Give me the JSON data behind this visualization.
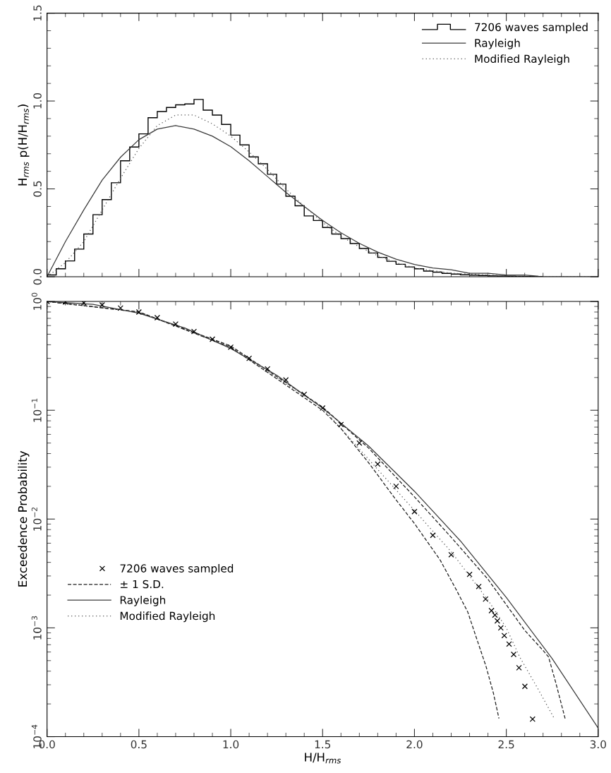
{
  "chart_data": [
    {
      "type": "histogram",
      "ylabel": "H$_{rms}$ p(H/H$_{rms}$)",
      "xlim": [
        0,
        3
      ],
      "xticks": [
        0,
        0.5,
        1,
        1.5,
        2,
        2.5,
        3
      ],
      "ylim": [
        0,
        1.5
      ],
      "yticks": [
        {
          "value": 0,
          "label": "0.0"
        },
        0.5,
        {
          "value": 1,
          "label": "1.0"
        },
        1.5
      ],
      "tick_labels": "y",
      "legend": "top right",
      "grid": false,
      "series": [
        {
          "name": "7206 waves sampled",
          "color": "#000000",
          "bins": [
            0,
            0.05,
            0.1,
            0.15,
            0.2,
            0.25,
            0.3,
            0.35,
            0.4,
            0.45,
            0.5,
            0.55,
            0.6,
            0.65,
            0.7,
            0.75,
            0.8,
            0.85,
            0.9,
            0.95,
            1.0,
            1.05,
            1.1,
            1.15,
            1.2,
            1.25,
            1.3,
            1.35,
            1.4,
            1.45,
            1.5,
            1.55,
            1.6,
            1.65,
            1.7,
            1.75,
            1.8,
            1.85,
            1.9,
            1.95,
            2.0,
            2.05,
            2.1,
            2.15,
            2.2,
            2.25,
            2.3,
            2.35,
            2.4,
            2.45,
            2.5,
            2.55,
            2.6,
            2.65,
            2.7
          ],
          "values": [
            0.01,
            0.045,
            0.09,
            0.157,
            0.243,
            0.353,
            0.439,
            0.535,
            0.66,
            0.738,
            0.813,
            0.905,
            0.94,
            0.963,
            0.978,
            0.983,
            1.009,
            0.948,
            0.92,
            0.867,
            0.806,
            0.75,
            0.682,
            0.643,
            0.583,
            0.527,
            0.458,
            0.404,
            0.346,
            0.32,
            0.28,
            0.243,
            0.217,
            0.189,
            0.161,
            0.135,
            0.11,
            0.088,
            0.071,
            0.056,
            0.045,
            0.032,
            0.026,
            0.019,
            0.015,
            0.011,
            0.009,
            0.007,
            0.005,
            0.004,
            0.003,
            0.002,
            0.001,
            0.001
          ]
        },
        {
          "name": "Rayleigh",
          "type": "line",
          "line_style": "solid",
          "color": "#3a3a3a",
          "x": [
            0,
            0.1,
            0.2,
            0.3,
            0.4,
            0.5,
            0.6,
            0.7,
            0.8,
            0.9,
            1.0,
            1.1,
            1.2,
            1.3,
            1.4,
            1.5,
            1.6,
            1.7,
            1.8,
            1.9,
            2.0,
            2.1,
            2.2,
            2.3,
            2.4,
            2.5,
            2.6,
            2.7,
            2.8,
            2.9,
            3.0
          ],
          "values": [
            0,
            0.2,
            0.38,
            0.55,
            0.68,
            0.78,
            0.84,
            0.86,
            0.84,
            0.8,
            0.74,
            0.66,
            0.57,
            0.48,
            0.4,
            0.32,
            0.25,
            0.19,
            0.14,
            0.1,
            0.07,
            0.05,
            0.04,
            0.02,
            0.02,
            0.01,
            0.01,
            0.0,
            0.0,
            0.0,
            0.0
          ]
        },
        {
          "name": "Modified Rayleigh",
          "type": "line",
          "line_style": "dotted",
          "color": "#555555",
          "x": [
            0,
            0.1,
            0.2,
            0.3,
            0.4,
            0.5,
            0.6,
            0.7,
            0.8,
            0.9,
            1.0,
            1.1,
            1.2,
            1.3,
            1.4,
            1.5,
            1.6,
            1.7,
            1.8,
            1.9,
            2.0,
            2.2,
            2.4,
            2.6,
            3.0
          ],
          "values": [
            0,
            0.08,
            0.2,
            0.38,
            0.56,
            0.73,
            0.86,
            0.92,
            0.92,
            0.87,
            0.8,
            0.71,
            0.61,
            0.5,
            0.4,
            0.31,
            0.23,
            0.17,
            0.12,
            0.08,
            0.05,
            0.02,
            0.01,
            0.0,
            0.0
          ]
        }
      ]
    },
    {
      "type": "scatter",
      "xlabel": "H/H$_{rms}$",
      "ylabel": "Exceedence Probability",
      "log": "y",
      "xlim": [
        0,
        3
      ],
      "xticks": [
        {
          "value": 0,
          "label": "0.0"
        },
        0.5,
        {
          "value": 1,
          "label": "1.0"
        },
        1.5,
        {
          "value": 2,
          "label": "2.0"
        },
        2.5,
        {
          "value": 3,
          "label": "3.0"
        }
      ],
      "ylim": [
        0.0001,
        1
      ],
      "yticks": [
        {
          "value": 0.0001,
          "label": "10$^{−4}$"
        },
        {
          "value": 0.001,
          "label": "10$^{−3}$"
        },
        {
          "value": 0.01,
          "label": "10$^{−2}$"
        },
        {
          "value": 0.1,
          "label": "10$^{−1}$"
        },
        {
          "value": 1,
          "label": "10$^{0}$"
        }
      ],
      "legend": "center left",
      "grid": false,
      "series": [
        {
          "name": "7206 waves sampled",
          "marker": "cross",
          "color": "#000000",
          "x": [
            0,
            0.1,
            0.2,
            0.3,
            0.4,
            0.5,
            0.6,
            0.7,
            0.8,
            0.9,
            1.0,
            1.1,
            1.2,
            1.3,
            1.4,
            1.5,
            1.6,
            1.7,
            1.8,
            1.9,
            2.0,
            2.1,
            2.2,
            2.3,
            2.35,
            2.387,
            2.419,
            2.438,
            2.451,
            2.47,
            2.489,
            2.515,
            2.54,
            2.569,
            2.601,
            2.643
          ],
          "values": [
            1.0,
            0.99,
            0.97,
            0.93,
            0.87,
            0.8,
            0.71,
            0.62,
            0.53,
            0.45,
            0.38,
            0.3,
            0.24,
            0.19,
            0.14,
            0.105,
            0.074,
            0.05,
            0.032,
            0.02,
            0.0117,
            0.0071,
            0.0047,
            0.0031,
            0.0024,
            0.00184,
            0.00144,
            0.00131,
            0.00116,
            0.001,
            0.00085,
            0.00071,
            0.00057,
            0.00043,
            0.00029,
            0.000145
          ]
        },
        {
          "name": "± 1 S.D.",
          "type": "line",
          "line_style": "dashed",
          "color": "#1e1e1e",
          "x": [
            0,
            0.5,
            1.0,
            1.5,
            1.75,
            2.0,
            2.2,
            2.4,
            2.6,
            2.7,
            2.73,
            2.77,
            2.82
          ],
          "values": [
            1.0,
            0.8,
            0.39,
            0.107,
            0.045,
            0.016,
            0.0068,
            0.0028,
            0.00095,
            0.00062,
            0.00054,
            0.00031,
            0.000147
          ]
        },
        {
          "type": "line",
          "line_style": "dashed",
          "color": "#1e1e1e",
          "x": [
            0,
            0.5,
            1.0,
            1.5,
            1.6,
            1.75,
            1.9,
            2.0,
            2.14,
            2.23,
            2.29,
            2.33,
            2.39,
            2.43,
            2.46
          ],
          "values": [
            1.0,
            0.8,
            0.38,
            0.1,
            0.068,
            0.033,
            0.015,
            0.0091,
            0.0042,
            0.0022,
            0.0014,
            0.00088,
            0.00044,
            0.00025,
            0.000147
          ]
        },
        {
          "name": "Rayleigh",
          "type": "line",
          "line_style": "solid",
          "color": "#3a3a3a",
          "x": [
            0,
            0.25,
            0.5,
            0.75,
            1.0,
            1.25,
            1.5,
            1.75,
            2.0,
            2.25,
            2.5,
            2.75,
            3.0
          ],
          "values": [
            1.0,
            0.94,
            0.78,
            0.57,
            0.37,
            0.21,
            0.105,
            0.047,
            0.018,
            0.0063,
            0.0019,
            0.00052,
            0.00012
          ]
        },
        {
          "name": "Modified Rayleigh",
          "type": "line",
          "line_style": "dotted",
          "color": "#555555",
          "x": [
            0,
            0.5,
            1.0,
            1.5,
            2.0,
            2.2,
            2.4,
            2.5,
            2.573,
            2.675,
            2.758
          ],
          "values": [
            1.0,
            0.8,
            0.38,
            0.105,
            0.012,
            0.005,
            0.0018,
            0.001,
            0.00054,
            0.00027,
            0.00015
          ]
        }
      ]
    }
  ]
}
